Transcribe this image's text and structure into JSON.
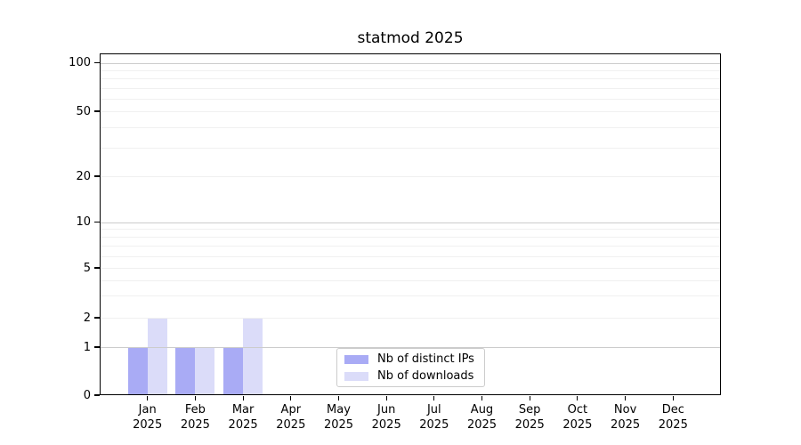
{
  "chart_data": {
    "type": "bar",
    "title": "statmod 2025",
    "categories": [
      "Jan\n2025",
      "Feb\n2025",
      "Mar\n2025",
      "Apr\n2025",
      "May\n2025",
      "Jun\n2025",
      "Jul\n2025",
      "Aug\n2025",
      "Sep\n2025",
      "Oct\n2025",
      "Nov\n2025",
      "Dec\n2025"
    ],
    "series": [
      {
        "name": "Nb of distinct IPs",
        "color": "#a9abf5",
        "values": [
          1,
          1,
          1,
          0,
          0,
          0,
          0,
          0,
          0,
          0,
          0,
          0
        ]
      },
      {
        "name": "Nb of downloads",
        "color": "#dbdcf9",
        "values": [
          2,
          1,
          2,
          0,
          0,
          0,
          0,
          0,
          0,
          0,
          0,
          0
        ]
      }
    ],
    "yticks": [
      0,
      1,
      2,
      5,
      10,
      20,
      50,
      100
    ],
    "ylim": [
      0,
      110
    ],
    "yscale": "asinh-like (compressed log with linear zero region)",
    "xlabel": "",
    "ylabel": "",
    "grid": "horizontal, minor lines at log subdivisions, major at 1/10/100, drawn above bars",
    "legend_position": "lower center inside plot",
    "background_color": "#ffffff",
    "major_grid_color": "#cccccc",
    "minor_grid_color": "#f0f0f0"
  }
}
